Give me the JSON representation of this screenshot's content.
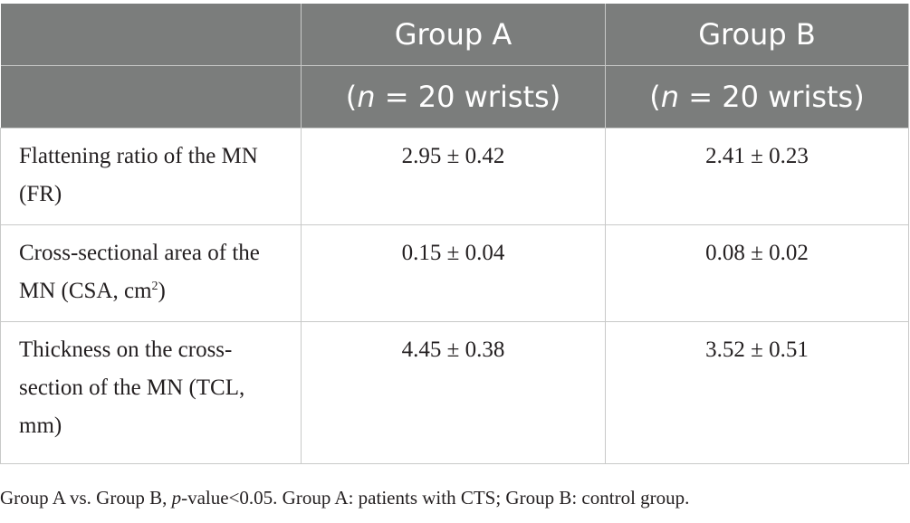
{
  "header": {
    "group_a_title": "Group A",
    "group_a_n_italic": "n",
    "group_a_n_rest": " = 20 wrists)",
    "group_b_title": "Group B",
    "group_b_n_italic": "n",
    "group_b_n_rest": " = 20 wrists)",
    "open_paren": "("
  },
  "rows": [
    {
      "label": "Flattening ratio of the MN (FR)",
      "group_a": "2.95 ± 0.42",
      "group_b": "2.41 ± 0.23"
    },
    {
      "label_before_sup": "Cross-sectional area of the MN (CSA, cm",
      "label_sup": "2",
      "label_after_sup": ")",
      "group_a": "0.15 ± 0.04",
      "group_b": "0.08 ± 0.02"
    },
    {
      "label": "Thickness on the cross-section of the MN (TCL, mm)",
      "group_a": "4.45 ± 0.38",
      "group_b": "3.52 ± 0.51"
    }
  ],
  "footnote": {
    "before_italic": "Group A vs. Group B, ",
    "italic": "p",
    "after_italic": "-value<0.05. Group A: patients with CTS; Group B: control group."
  }
}
